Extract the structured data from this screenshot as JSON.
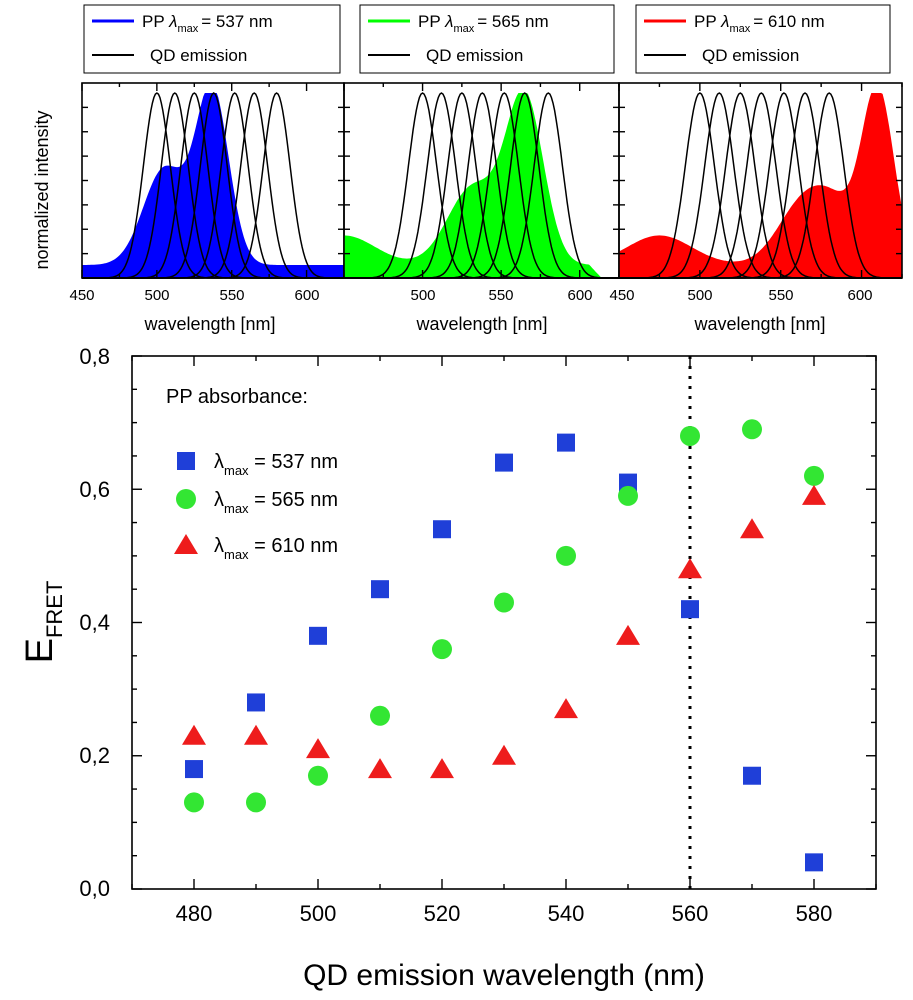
{
  "chart_data": [
    {
      "id": "blue",
      "type": "line",
      "title": "",
      "xlabel": "wavelength [nm]",
      "ylabel": "normalized intensity",
      "xlim": [
        450,
        625
      ],
      "xticks": [
        450,
        500,
        550,
        600
      ],
      "color": "#0000ff",
      "legend": [
        {
          "prefix": "PP ",
          "sym": "λ",
          "sub": "max",
          "suffix": "= 537 nm",
          "color": "#0000ff"
        },
        {
          "label": "QD emission",
          "color": "#000000"
        }
      ],
      "absorbance": {
        "peak_nm": 537,
        "baseline": 0.07,
        "shoulder_nm": 505,
        "shoulder_rel": 0.52,
        "end_nm": 575
      },
      "qd_emission_peaks_nm": [
        500,
        512,
        525,
        538,
        552,
        565,
        580
      ]
    },
    {
      "id": "green",
      "type": "line",
      "title": "",
      "xlabel": "wavelength [nm]",
      "ylabel": "",
      "xlim": [
        450,
        625
      ],
      "xticks": [
        500,
        550,
        600
      ],
      "color": "#00ff00",
      "legend": [
        {
          "prefix": "PP ",
          "sym": "λ",
          "sub": "max",
          "suffix": "= 565 nm",
          "color": "#00ff00"
        },
        {
          "label": "QD emission",
          "color": "#000000"
        }
      ],
      "absorbance": {
        "peak_nm": 565,
        "baseline": 0.1,
        "shoulder_nm": 532,
        "shoulder_rel": 0.42,
        "end_nm": 606
      },
      "qd_emission_peaks_nm": [
        500,
        512,
        525,
        538,
        552,
        565,
        580
      ]
    },
    {
      "id": "red",
      "type": "line",
      "title": "",
      "xlabel": "wavelength [nm]",
      "ylabel": "",
      "xlim": [
        450,
        625
      ],
      "xticks": [
        450,
        500,
        550,
        600
      ],
      "color": "#ff0000",
      "legend": [
        {
          "prefix": "PP ",
          "sym": "λ",
          "sub": "max",
          "suffix": "= 610 nm",
          "color": "#ff0000"
        },
        {
          "label": "QD emission",
          "color": "#000000"
        }
      ],
      "absorbance": {
        "peak_nm": 610,
        "baseline": 0.08,
        "shoulder_nm": 572,
        "shoulder_rel": 0.4,
        "end_nm": 625
      },
      "qd_emission_peaks_nm": [
        500,
        512,
        525,
        538,
        552,
        565,
        580
      ]
    },
    {
      "id": "main",
      "type": "scatter",
      "title": "",
      "xlabel": "QD emission wavelength (nm)",
      "ylabel": "E",
      "ylabel_sub": "FRET",
      "xlim": [
        470,
        590
      ],
      "ylim": [
        0,
        0.8
      ],
      "xticks": [
        "480",
        "500",
        "520",
        "540",
        "560",
        "580"
      ],
      "yticks": [
        "0,0",
        "0,2",
        "0,4",
        "0,6",
        "0,8"
      ],
      "vline_x": 560,
      "legend_title": "PP absorbance:",
      "series": [
        {
          "name": "λmax = 537 nm",
          "legend_sym": "λ",
          "legend_sub": "max",
          "legend_suffix": " = 537 nm",
          "marker": "square",
          "color": "#1f3fd8",
          "x": [
            480,
            490,
            500,
            510,
            520,
            530,
            540,
            550,
            560,
            570,
            580
          ],
          "y": [
            0.18,
            0.28,
            0.38,
            0.45,
            0.54,
            0.64,
            0.67,
            0.61,
            0.42,
            0.17,
            0.04
          ]
        },
        {
          "name": "λmax = 565 nm",
          "legend_sym": "λ",
          "legend_sub": "max",
          "legend_suffix": " = 565 nm",
          "marker": "circle",
          "color": "#33e633",
          "x": [
            480,
            490,
            500,
            510,
            520,
            530,
            540,
            550,
            560,
            570,
            580
          ],
          "y": [
            0.13,
            0.13,
            0.17,
            0.26,
            0.36,
            0.43,
            0.5,
            0.59,
            0.68,
            0.69,
            0.62
          ]
        },
        {
          "name": "λmax = 610 nm",
          "legend_sym": "λ",
          "legend_sub": "max",
          "legend_suffix": " = 610 nm",
          "marker": "triangle",
          "color": "#ee1c1c",
          "x": [
            480,
            490,
            500,
            510,
            520,
            530,
            540,
            550,
            560,
            570,
            580
          ],
          "y": [
            0.23,
            0.23,
            0.21,
            0.18,
            0.18,
            0.2,
            0.27,
            0.38,
            0.48,
            0.54,
            0.59
          ]
        }
      ]
    }
  ]
}
